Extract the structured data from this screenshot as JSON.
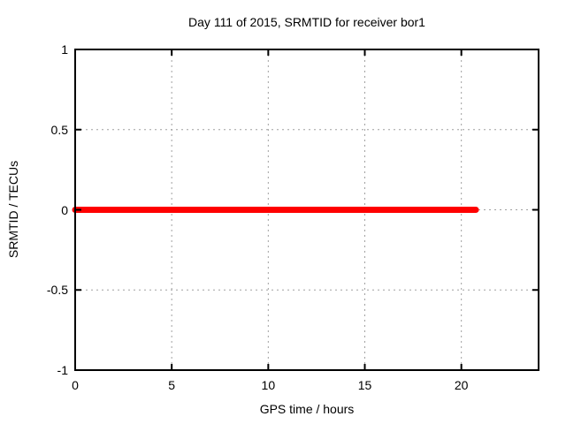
{
  "colors": {
    "background": "#ffffff",
    "axis": "#000000",
    "grid": "#a0a0a0",
    "text": "#000000",
    "series": "#ff0000"
  },
  "chart_data": {
    "type": "line",
    "title": "Day 111 of 2015, SRMTID for receiver bor1",
    "xlabel": "GPS time / hours",
    "ylabel": "SRMTID / TECUs",
    "xlim": [
      0,
      24
    ],
    "ylim": [
      -1,
      1
    ],
    "grid": true,
    "legend": "none",
    "xticks": [
      {
        "value": 0,
        "label": "0"
      },
      {
        "value": 5,
        "label": "5"
      },
      {
        "value": 10,
        "label": "10"
      },
      {
        "value": 15,
        "label": "15"
      },
      {
        "value": 20,
        "label": "20"
      }
    ],
    "yticks": [
      {
        "value": 1,
        "label": "1"
      },
      {
        "value": 0.5,
        "label": "0.5"
      },
      {
        "value": 0,
        "label": "0"
      },
      {
        "value": -0.5,
        "label": "-0.5"
      },
      {
        "value": -1,
        "label": "-1"
      }
    ],
    "series": [
      {
        "name": "SRMTID",
        "color": "#ff0000",
        "line_width": 7,
        "x": [
          0,
          20.75
        ],
        "y": [
          0,
          0
        ]
      }
    ]
  }
}
